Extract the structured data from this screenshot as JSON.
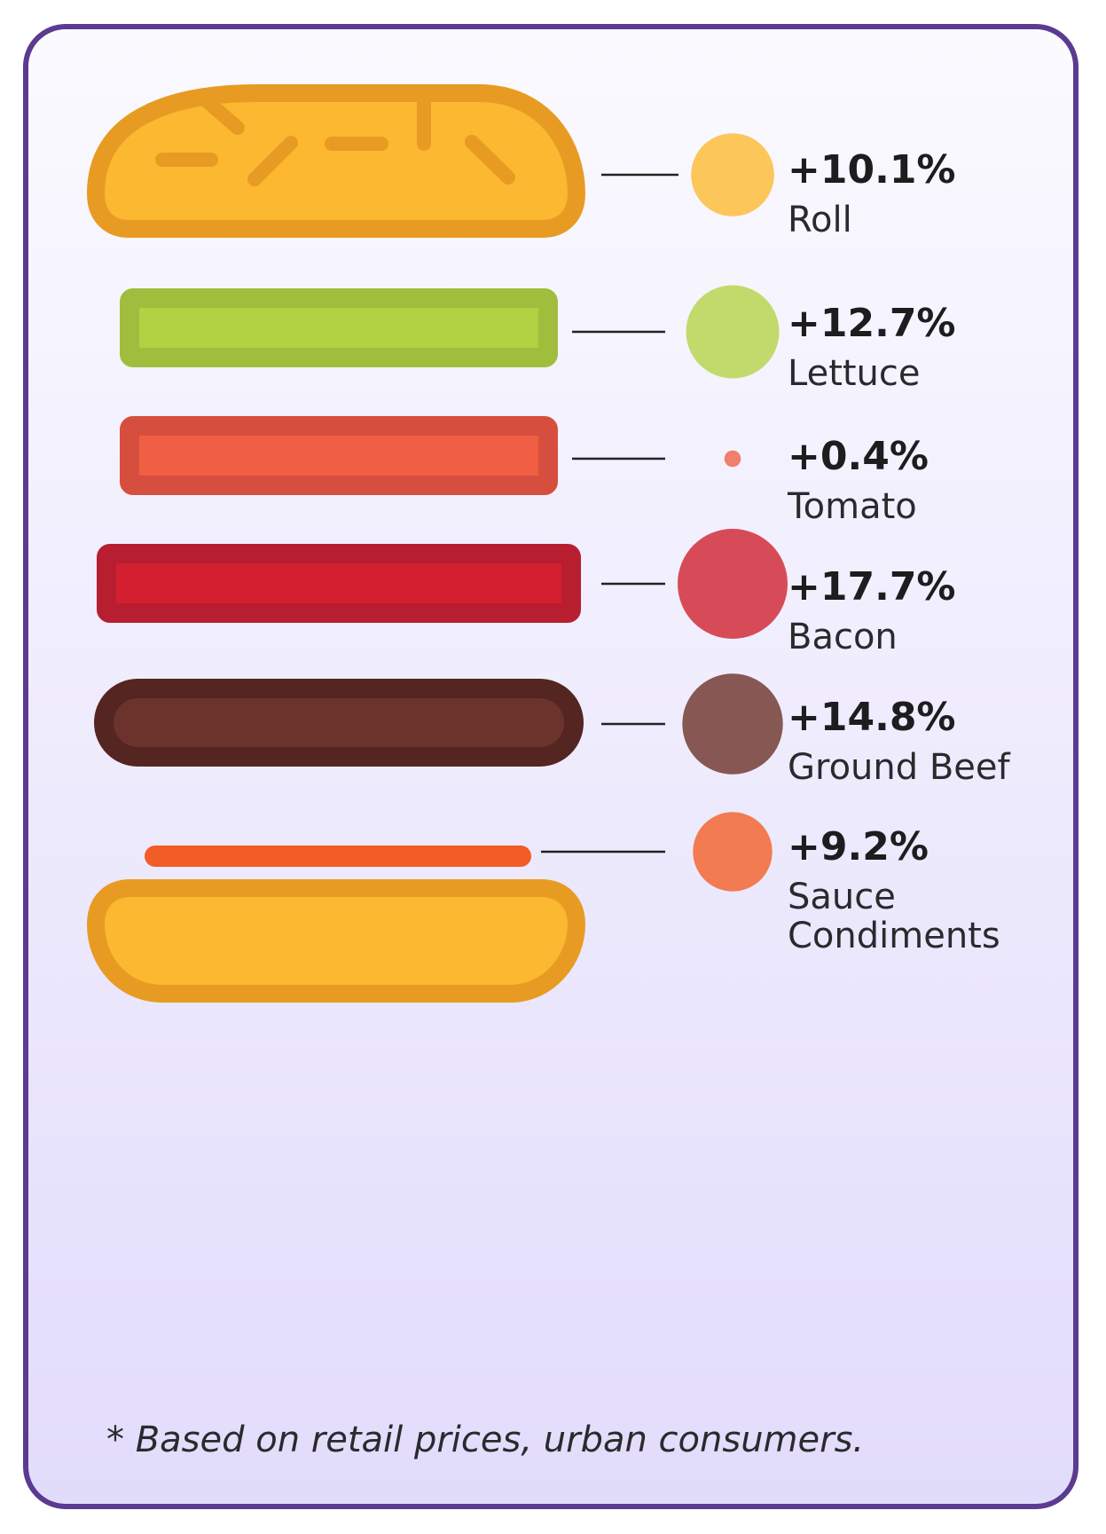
{
  "chart_data": {
    "type": "bubble",
    "title": "",
    "items": [
      {
        "label": "Roll",
        "value": 10.1,
        "display": "+10.1%",
        "color": "#fcc65b"
      },
      {
        "label": "Lettuce",
        "value": 12.7,
        "display": "+12.7%",
        "color": "#c2da6c"
      },
      {
        "label": "Tomato",
        "value": 0.4,
        "display": "+0.4%",
        "color": "#f07f6c"
      },
      {
        "label": "Bacon",
        "value": 17.7,
        "display": "+17.7%",
        "color": "#d74b58"
      },
      {
        "label": "Ground Beef",
        "value": 14.8,
        "display": "+14.8%",
        "color": "#875853"
      },
      {
        "label": "Sauce\nCondiments",
        "value": 9.2,
        "display": "+9.2%",
        "color": "#f27b52"
      }
    ]
  },
  "colors": {
    "border": "#5b3a91",
    "bun_fill": "#fbb830",
    "bun_stroke": "#e89b22",
    "lettuce_fill": "#b2d143",
    "lettuce_stroke": "#a1bd3d",
    "tomato_fill": "#f05f43",
    "tomato_stroke": "#d64f3e",
    "bacon_fill": "#d31f2f",
    "bacon_stroke": "#b71f30",
    "beef_fill": "#6b332c",
    "beef_stroke": "#552521",
    "sauce": "#f25c27"
  },
  "footnote": "* Based on retail prices, urban consumers."
}
